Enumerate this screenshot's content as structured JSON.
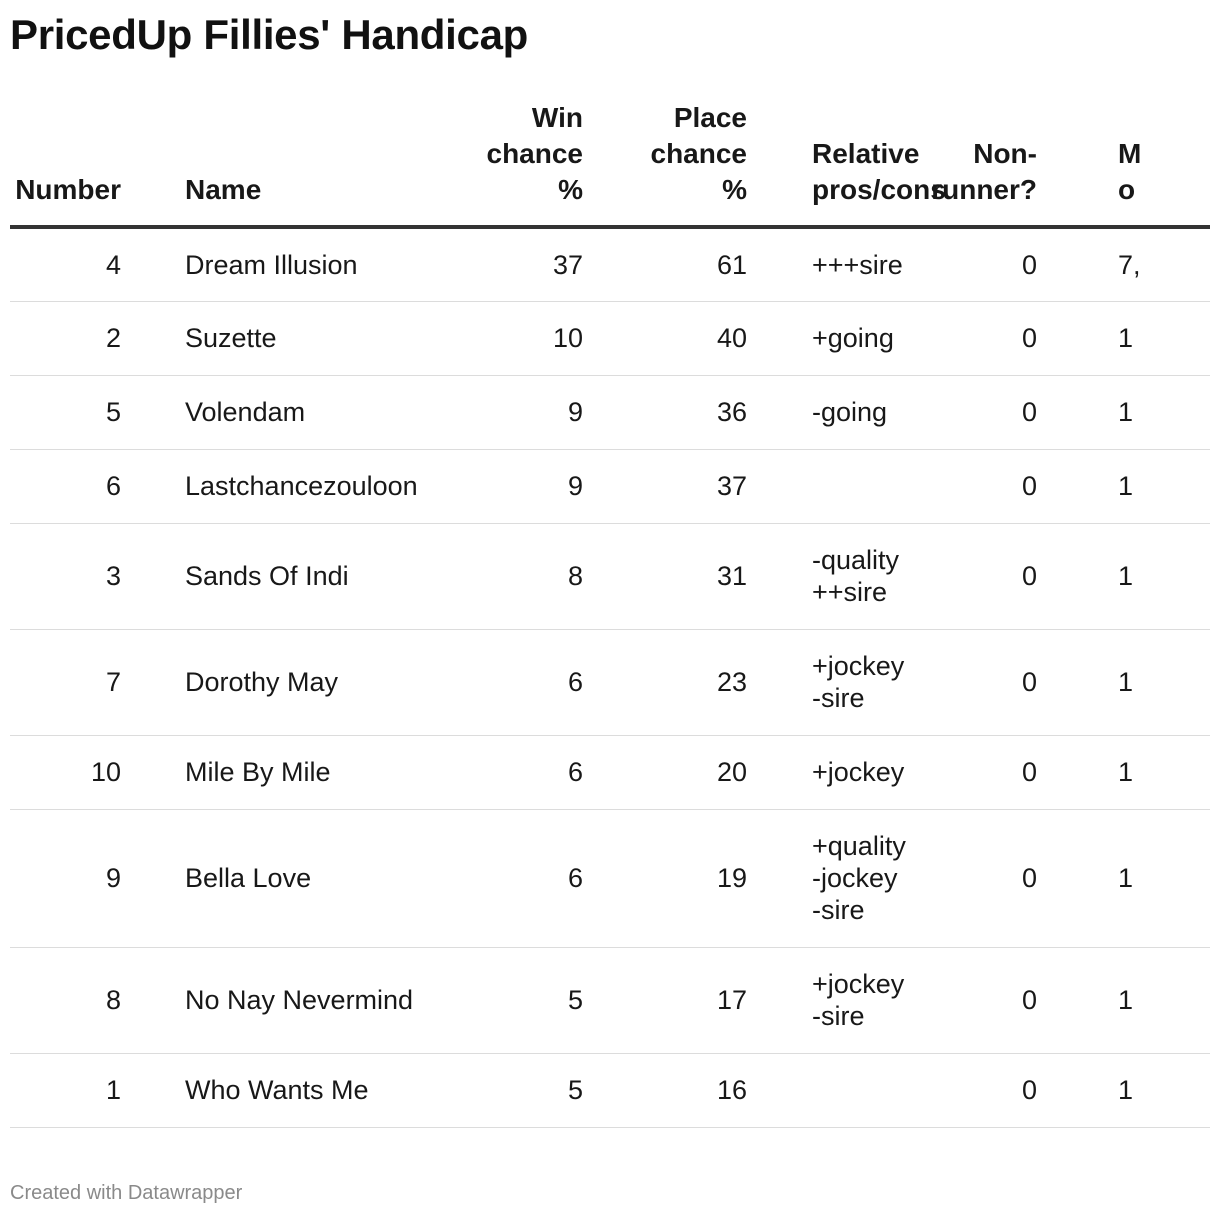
{
  "title": "PricedUp Fillies' Handicap",
  "columns": {
    "number": "Number",
    "name": "Name",
    "win": "Win\nchance\n%",
    "place": "Place\nchance\n%",
    "relative": "Relative\npros/cons",
    "nonrunner": "Non-\nrunner?",
    "more": "M\no"
  },
  "rows": [
    {
      "number": "4",
      "name": "Dream Illusion",
      "win": "37",
      "place": "61",
      "relative": "+++sire",
      "nonrunner": "0",
      "more": "7,"
    },
    {
      "number": "2",
      "name": "Suzette",
      "win": "10",
      "place": "40",
      "relative": "+going",
      "nonrunner": "0",
      "more": "1"
    },
    {
      "number": "5",
      "name": "Volendam",
      "win": "9",
      "place": "36",
      "relative": "-going",
      "nonrunner": "0",
      "more": "1"
    },
    {
      "number": "6",
      "name": "Lastchancezouloon",
      "win": "9",
      "place": "37",
      "relative": "",
      "nonrunner": "0",
      "more": "1"
    },
    {
      "number": "3",
      "name": "Sands Of Indi",
      "win": "8",
      "place": "31",
      "relative": "-quality\n++sire",
      "nonrunner": "0",
      "more": "1"
    },
    {
      "number": "7",
      "name": "Dorothy May",
      "win": "6",
      "place": "23",
      "relative": "+jockey\n-sire",
      "nonrunner": "0",
      "more": "1"
    },
    {
      "number": "10",
      "name": "Mile By Mile",
      "win": "6",
      "place": "20",
      "relative": "+jockey",
      "nonrunner": "0",
      "more": "1"
    },
    {
      "number": "9",
      "name": "Bella Love",
      "win": "6",
      "place": "19",
      "relative": "+quality\n-jockey\n-sire",
      "nonrunner": "0",
      "more": "1"
    },
    {
      "number": "8",
      "name": "No Nay Nevermind",
      "win": "5",
      "place": "17",
      "relative": "+jockey\n-sire",
      "nonrunner": "0",
      "more": "1"
    },
    {
      "number": "1",
      "name": "Who Wants Me",
      "win": "5",
      "place": "16",
      "relative": "",
      "nonrunner": "0",
      "more": "1"
    }
  ],
  "footer": "Created with Datawrapper"
}
